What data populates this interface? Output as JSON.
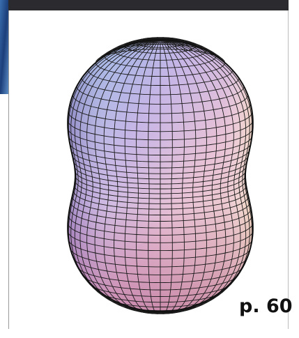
{
  "page_label": "p. 60"
}
